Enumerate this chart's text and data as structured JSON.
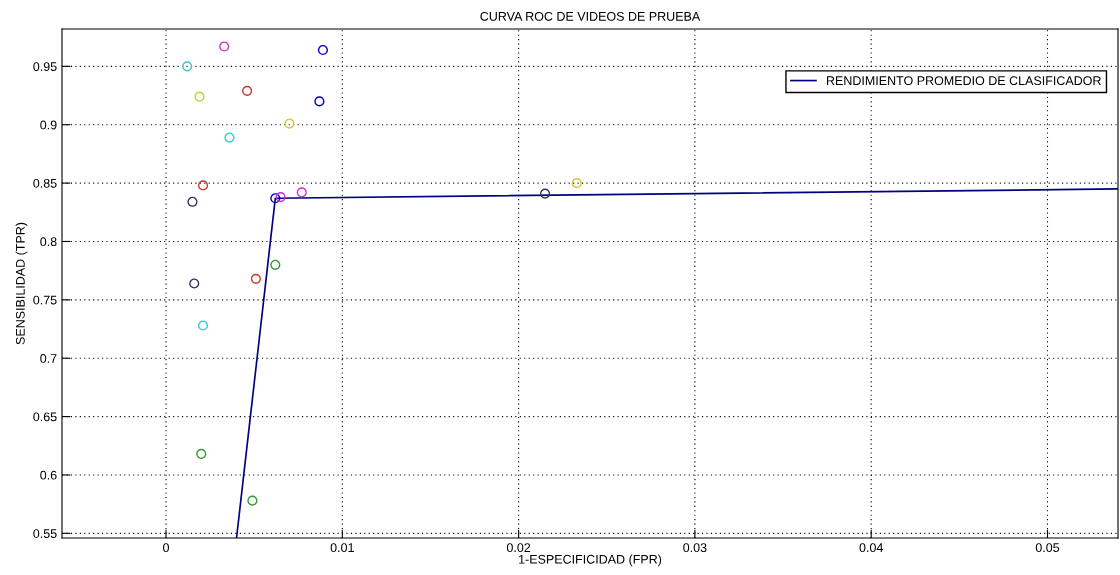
{
  "chart_data": {
    "type": "scatter",
    "title": "CURVA ROC DE VIDEOS DE PRUEBA",
    "xlabel": "1-ESPECIFICIDAD (FPR)",
    "ylabel": "SENSIBILIDAD (TPR)",
    "xlim": [
      -0.0059,
      0.054
    ],
    "ylim": [
      0.546,
      0.982
    ],
    "xticks": [
      0,
      0.01,
      0.02,
      0.03,
      0.04,
      0.05
    ],
    "yticks": [
      0.55,
      0.6,
      0.65,
      0.7,
      0.75,
      0.8,
      0.85,
      0.9,
      0.95
    ],
    "grid": true,
    "legend": "top right",
    "marker": "circle",
    "series": [
      {
        "type": "line",
        "name": "RENDIMIENTO PROMEDIO DE CLASIFICADOR",
        "color": "#000080",
        "x": [
          0.004,
          0.0062,
          0.054
        ],
        "values": [
          0.546,
          0.837,
          0.845
        ],
        "marker": "none",
        "line_style": "solid"
      },
      {
        "color": "#0000cc",
        "x": [
          0.0089,
          0.0087,
          0.0062
        ],
        "values": [
          0.964,
          0.92,
          0.837
        ]
      },
      {
        "color": "#339933",
        "x": [
          0.0062,
          0.002,
          0.0049
        ],
        "values": [
          0.78,
          0.618,
          0.578
        ]
      },
      {
        "color": "#cc3333",
        "x": [
          0.0046,
          0.0021,
          0.0051
        ],
        "values": [
          0.929,
          0.848,
          0.768
        ]
      },
      {
        "color": "#33cccc",
        "x": [
          0.0012,
          0.0036,
          0.0021
        ],
        "values": [
          0.95,
          0.889,
          0.728
        ]
      },
      {
        "color": "#cc33cc",
        "x": [
          0.0033,
          0.0065,
          0.0077
        ],
        "values": [
          0.967,
          0.838,
          0.842
        ]
      },
      {
        "color": "#cccc33",
        "x": [
          0.0019,
          0.007,
          0.0233
        ],
        "values": [
          0.924,
          0.901,
          0.85
        ]
      },
      {
        "color": "#333366",
        "x": [
          0.0015,
          0.0016,
          0.0215
        ],
        "values": [
          0.834,
          0.764,
          0.841
        ]
      }
    ]
  }
}
